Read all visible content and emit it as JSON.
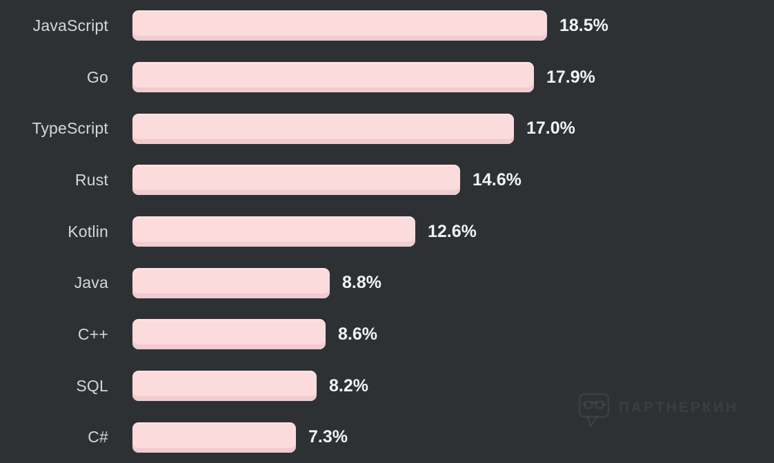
{
  "chart_data": {
    "type": "bar",
    "orientation": "horizontal",
    "title": "",
    "xlabel": "",
    "ylabel": "",
    "categories": [
      "JavaScript",
      "Go",
      "TypeScript",
      "Rust",
      "Kotlin",
      "Java",
      "C++",
      "SQL",
      "C#"
    ],
    "values": [
      18.5,
      17.9,
      17.0,
      14.6,
      12.6,
      8.8,
      8.6,
      8.2,
      7.3
    ],
    "value_labels": [
      "18.5%",
      "17.9%",
      "17.0%",
      "14.6%",
      "12.6%",
      "8.8%",
      "8.6%",
      "8.2%",
      "7.3%"
    ],
    "xlim": [
      0,
      18.5
    ],
    "grid": false,
    "legend": false,
    "colors": {
      "background": "#2e3134",
      "bar": "#fcdbdd",
      "bar_bottom_bevel": "#f1cbcf",
      "category_label": "#d6d7d8",
      "value_label": "#f3f3f4"
    }
  },
  "watermark": {
    "label": "ПАРТНЕРКИН",
    "icon": "speech-bubble-glasses-icon"
  }
}
